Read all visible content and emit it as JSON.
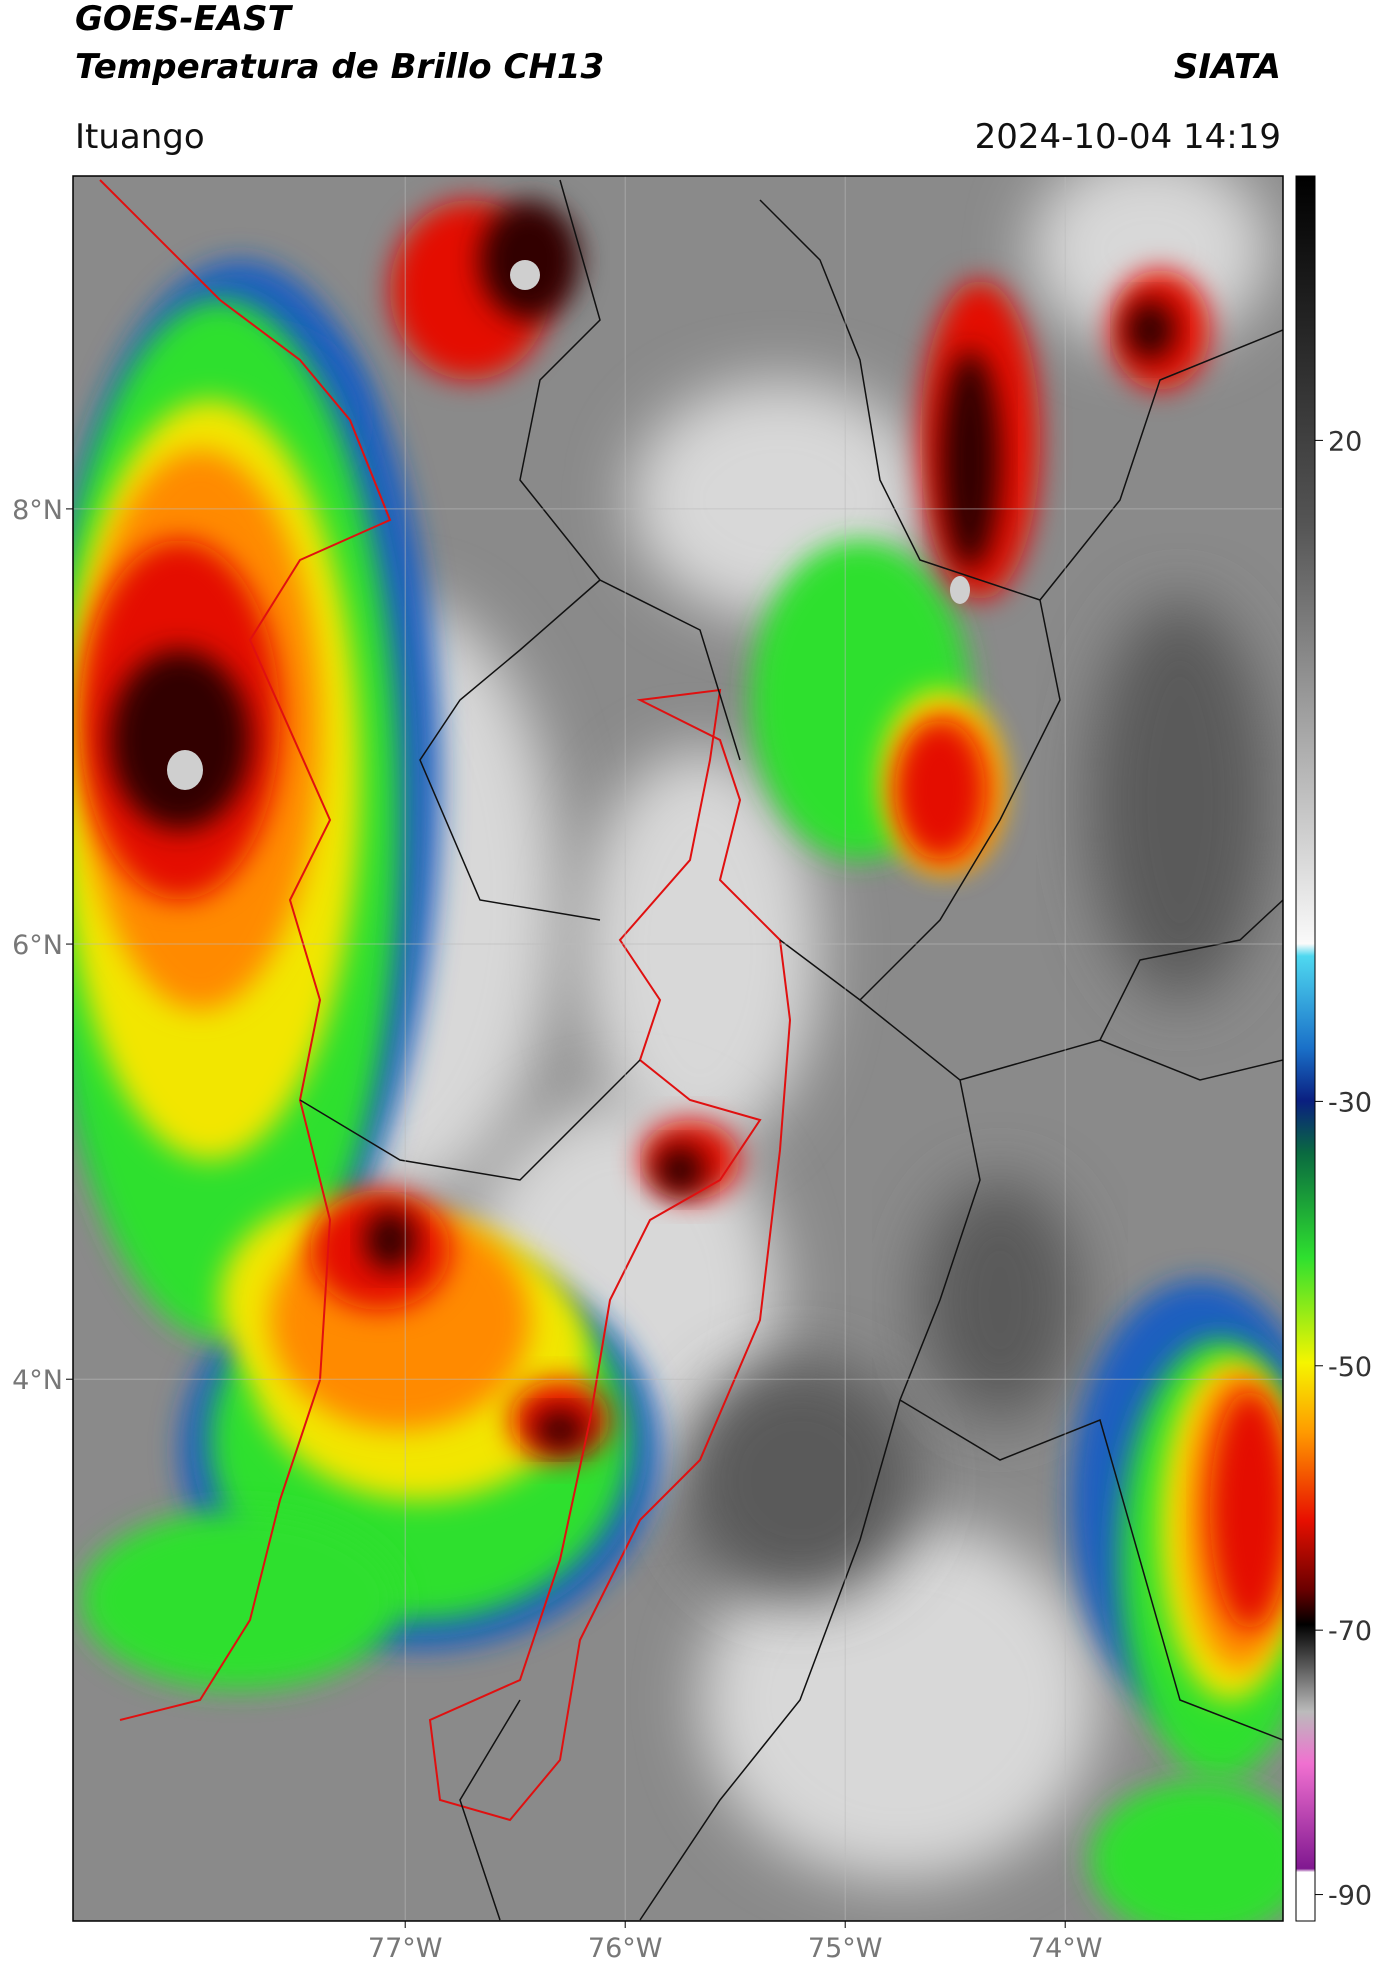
{
  "header": {
    "satellite": "GOES-EAST",
    "title": "Temperatura de Brillo CH13",
    "source": "SIATA",
    "region": "Ituango",
    "timestamp": "2024-10-04 14:19"
  },
  "map": {
    "xlim": [
      -78.51,
      -73.01
    ],
    "ylim": [
      1.51,
      9.53
    ],
    "xticks": [
      {
        "value": -77,
        "label": "77°W"
      },
      {
        "value": -76,
        "label": "76°W"
      },
      {
        "value": -75,
        "label": "75°W"
      },
      {
        "value": -74,
        "label": "74°W"
      }
    ],
    "yticks": [
      {
        "value": 8,
        "label": "8°N"
      },
      {
        "value": 6,
        "label": "6°N"
      },
      {
        "value": 4,
        "label": "4°N"
      }
    ],
    "grid": true
  },
  "colorbar": {
    "range": [
      -92,
      40
    ],
    "ticks": [
      20,
      -30,
      -50,
      -70,
      -90
    ]
  }
}
